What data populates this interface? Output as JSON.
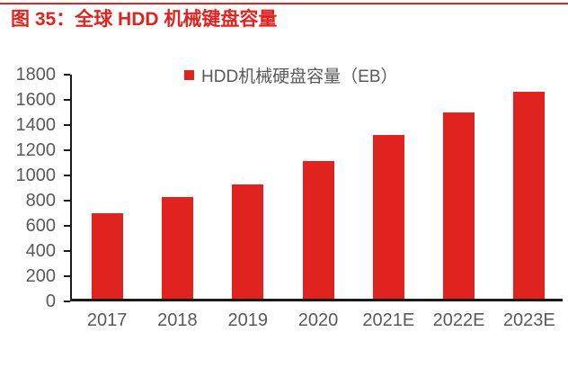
{
  "page": {
    "title": "图 35：全球 HDD 机械键盘容量"
  },
  "colors": {
    "accent_red": "#E0231F",
    "label_gray": "#595959",
    "axis_black": "#1A1A1A"
  },
  "chart_data": {
    "type": "bar",
    "title": "图 35：全球 HDD 机械键盘容量",
    "legend": [
      "HDD机械硬盘容量（EB）"
    ],
    "legend_position": "top-center",
    "categories": [
      "2017",
      "2018",
      "2019",
      "2020",
      "2021E",
      "2022E",
      "2023E"
    ],
    "values": [
      680,
      810,
      910,
      1090,
      1300,
      1480,
      1640
    ],
    "xlabel": "",
    "ylabel": "",
    "ylim": [
      0,
      1800
    ],
    "ytick_step": 200,
    "grid": false,
    "bar_color": "#E0231F"
  }
}
